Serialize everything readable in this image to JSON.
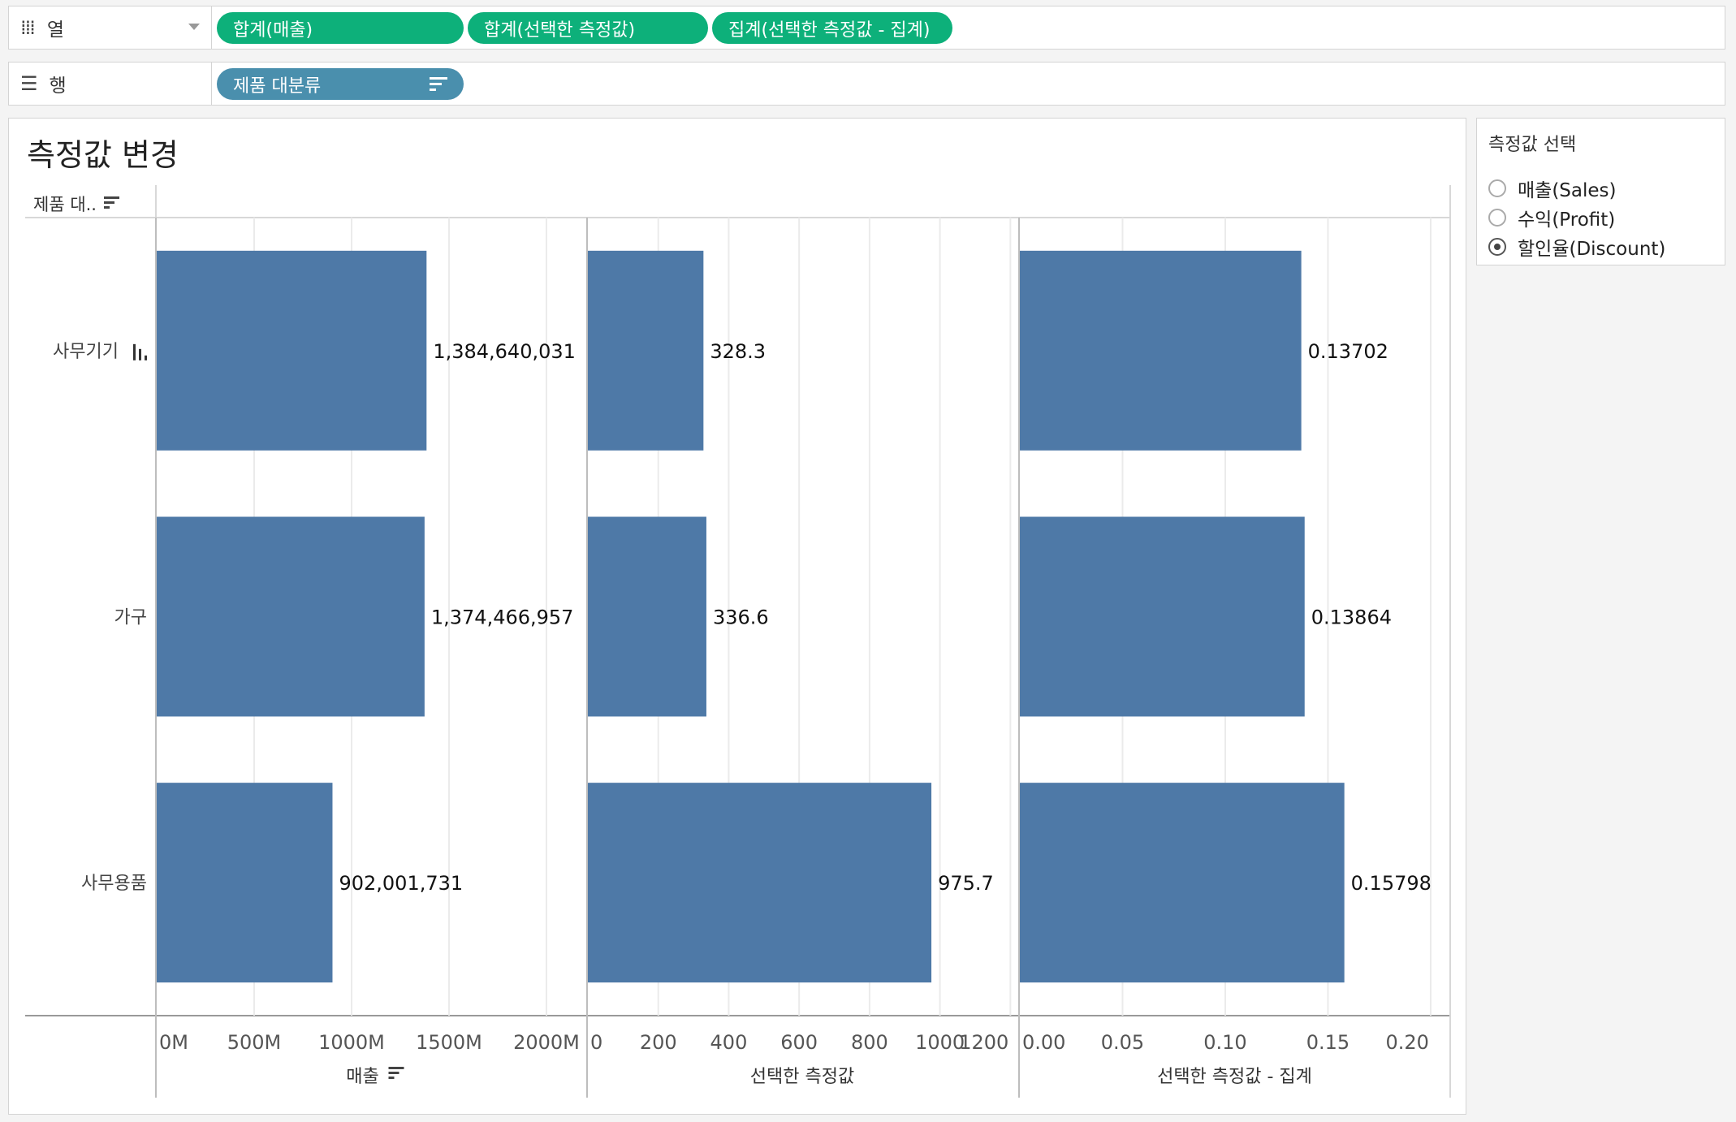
{
  "shelves": {
    "columns": {
      "label": "열",
      "icon": "columns-icon",
      "pills": [
        "합계(매출)",
        "합계(선택한 측정값)",
        "집계(선택한 측정값 - 집계)"
      ]
    },
    "rows": {
      "label": "행",
      "icon": "rows-list-icon",
      "pills": [
        "제품 대분류"
      ]
    }
  },
  "worksheet": {
    "title": "측정값 변경",
    "row_header_label": "제품 대..",
    "row_indicator_icon": "bar-chart-icon"
  },
  "parameter": {
    "title": "측정값 선택",
    "options": [
      "매출(Sales)",
      "수익(Profit)",
      "할인율(Discount)"
    ],
    "selected": "할인율(Discount)"
  },
  "colors": {
    "bar": "#4e79a7",
    "pill_green": "#0db07a",
    "pill_blue": "#4a8fad"
  },
  "chart_data": {
    "type": "bar",
    "orientation": "horizontal",
    "categories": [
      "사무기기",
      "가구",
      "사무용품"
    ],
    "panels": [
      {
        "xlabel": "매출",
        "sorted": true,
        "values": [
          1384640031,
          1374466957,
          902001731
        ],
        "value_labels": [
          "1,384,640,031",
          "1,374,466,957",
          "902,001,731"
        ],
        "xlim": [
          0,
          2200000000
        ],
        "ticks": [
          0,
          500000000,
          1000000000,
          1500000000,
          2000000000
        ],
        "tick_labels": [
          "0M",
          "500M",
          "1000M",
          "1500M",
          "2000M"
        ]
      },
      {
        "xlabel": "선택한 측정값",
        "sorted": false,
        "values": [
          328.3,
          336.6,
          975.7
        ],
        "value_labels": [
          "328.3",
          "336.6",
          "975.7"
        ],
        "xlim": [
          0,
          1220
        ],
        "ticks": [
          0,
          200,
          400,
          600,
          800,
          1000,
          1200
        ],
        "tick_labels": [
          "0",
          "200",
          "400",
          "600",
          "800",
          "1000",
          "1200"
        ]
      },
      {
        "xlabel": "선택한 측정값 - 집계",
        "sorted": false,
        "values": [
          0.13702,
          0.13864,
          0.15798
        ],
        "value_labels": [
          "0.13702",
          "0.13864",
          "0.15798"
        ],
        "xlim": [
          0,
          0.2095
        ],
        "ticks": [
          0,
          0.05,
          0.1,
          0.15,
          0.2
        ],
        "tick_labels": [
          "0.00",
          "0.05",
          "0.10",
          "0.15",
          "0.20"
        ]
      }
    ],
    "grid": true,
    "legend": "none"
  }
}
